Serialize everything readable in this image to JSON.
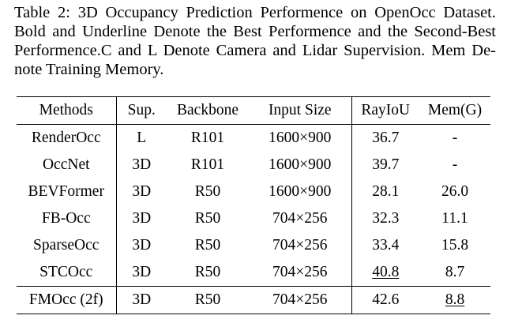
{
  "caption": {
    "lines": [
      "Table 2: 3D Occupancy Prediction Performence on OpenOcc Dataset.",
      "Bold and Underline Denote the Best Performence and the Second-Best",
      "Performence.C and L Denote Camera and Lidar Supervision. Mem De-",
      "note Training Memory."
    ]
  },
  "table": {
    "headers": {
      "method": "Methods",
      "sup": "Sup.",
      "backbone": "Backbone",
      "input": "Input Size",
      "rayiou": "RayIoU",
      "mem": "Mem(G)"
    },
    "rows": [
      {
        "method": "RenderOcc",
        "sup": "L",
        "backbone": "R101",
        "input": "1600×900",
        "rayiou": "36.7",
        "mem": "-"
      },
      {
        "method": "OccNet",
        "sup": "3D",
        "backbone": "R101",
        "input": "1600×900",
        "rayiou": "39.7",
        "mem": "-"
      },
      {
        "method": "BEVFormer",
        "sup": "3D",
        "backbone": "R50",
        "input": "1600×900",
        "rayiou": "28.1",
        "mem": "26.0"
      },
      {
        "method": "FB-Occ",
        "sup": "3D",
        "backbone": "R50",
        "input": "704×256",
        "rayiou": "32.3",
        "mem": "11.1"
      },
      {
        "method": "SparseOcc",
        "sup": "3D",
        "backbone": "R50",
        "input": "704×256",
        "rayiou": "33.4",
        "mem": "15.8"
      },
      {
        "method": "STCOcc",
        "sup": "3D",
        "backbone": "R50",
        "input": "704×256",
        "rayiou": "40.8",
        "mem": "8.7"
      }
    ],
    "ours": {
      "method": "FMOcc (2f)",
      "sup": "3D",
      "backbone": "R50",
      "input": "704×256",
      "rayiou": "42.6",
      "mem": "8.8"
    }
  }
}
